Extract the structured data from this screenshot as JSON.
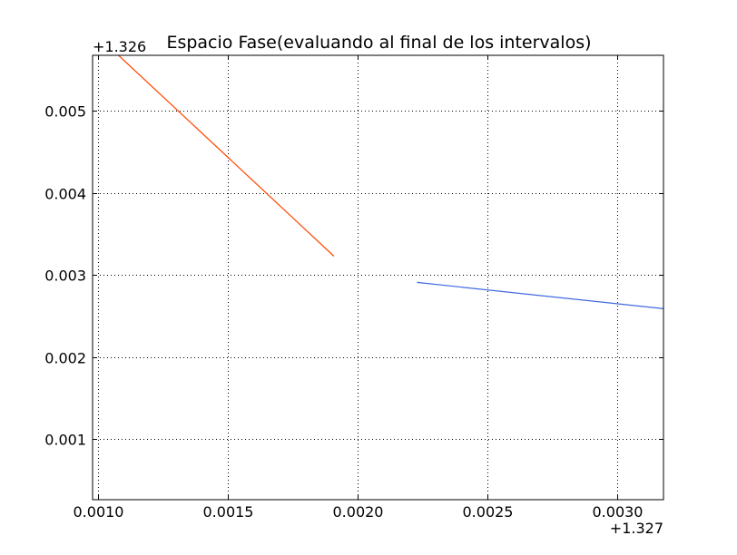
{
  "chart_data": {
    "type": "line",
    "title": "Espacio Fase(evaluando al final de los intervalos)",
    "xlabel": "",
    "ylabel": "",
    "x_offset": "+1.327",
    "y_offset": "+1.326",
    "xlim": [
      0.00098,
      0.00318
    ],
    "ylim": [
      0.00026,
      0.00568
    ],
    "x_ticks": [
      {
        "value": 0.001,
        "label": "0.0010"
      },
      {
        "value": 0.0015,
        "label": "0.0015"
      },
      {
        "value": 0.002,
        "label": "0.0020"
      },
      {
        "value": 0.0025,
        "label": "0.0025"
      },
      {
        "value": 0.003,
        "label": "0.0030"
      }
    ],
    "y_ticks": [
      {
        "value": 0.001,
        "label": "0.001"
      },
      {
        "value": 0.002,
        "label": "0.002"
      },
      {
        "value": 0.003,
        "label": "0.003"
      },
      {
        "value": 0.004,
        "label": "0.004"
      },
      {
        "value": 0.005,
        "label": "0.005"
      }
    ],
    "grid": true,
    "legend": "none",
    "series": [
      {
        "color": "#ff4500",
        "x": [
          0.00108,
          0.00191
        ],
        "y": [
          0.00568,
          0.00323
        ]
      },
      {
        "color": "#4169e1",
        "x": [
          0.00223,
          0.00318
        ],
        "y": [
          0.00291,
          0.00259
        ]
      }
    ]
  }
}
